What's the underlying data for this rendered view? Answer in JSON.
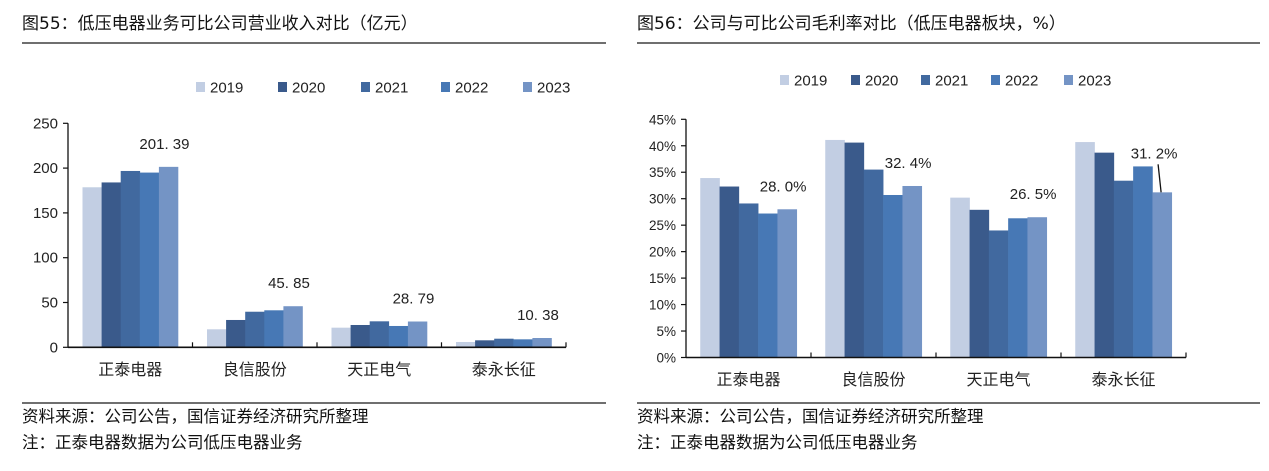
{
  "colors": {
    "2019": "#C2CEE3",
    "2020": "#3A5A8B",
    "2021": "#41699F",
    "2022": "#4778B5",
    "2023": "#7494C5",
    "rule": "#6f6f6f",
    "axis": "#111111"
  },
  "footer": {
    "source": "资料来源：公司公告，国信证券经济研究所整理",
    "note": "注：正泰电器数据为公司低压电器业务"
  },
  "chart_data": [
    {
      "type": "bar",
      "title": "图55：低压电器业务可比公司营业收入对比（亿元）",
      "xlabel": "",
      "ylabel": "",
      "categories": [
        "正泰电器",
        "良信股份",
        "天正电气",
        "泰永长征"
      ],
      "series": [
        {
          "name": "2019",
          "values": [
            178.6,
            20.1,
            21.9,
            5.9
          ]
        },
        {
          "name": "2020",
          "values": [
            184.0,
            30.5,
            24.9,
            7.8
          ]
        },
        {
          "name": "2021",
          "values": [
            196.8,
            39.7,
            29.0,
            9.6
          ]
        },
        {
          "name": "2022",
          "values": [
            195.0,
            41.3,
            23.8,
            8.9
          ]
        },
        {
          "name": "2023",
          "values": [
            201.39,
            45.85,
            28.79,
            10.38
          ]
        }
      ],
      "ylim": [
        0,
        250
      ],
      "yticks": [
        0,
        50,
        100,
        150,
        200,
        250
      ],
      "ytick_labels": [
        "0",
        "50",
        "100",
        "150",
        "200",
        "250"
      ],
      "grid": false,
      "legend_position": "top-center",
      "data_labels": [
        {
          "category": "正泰电器",
          "series": "2023",
          "text": "201. 39"
        },
        {
          "category": "良信股份",
          "series": "2023",
          "text": "45. 85"
        },
        {
          "category": "天正电气",
          "series": "2023",
          "text": "28. 79"
        },
        {
          "category": "泰永长征",
          "series": "2023",
          "text": "10. 38"
        }
      ]
    },
    {
      "type": "bar",
      "title": "图56：公司与可比公司毛利率对比（低压电器板块，%）",
      "xlabel": "",
      "ylabel": "",
      "categories": [
        "正泰电器",
        "良信股份",
        "天正电气",
        "泰永长征"
      ],
      "series": [
        {
          "name": "2019",
          "values": [
            33.9,
            41.1,
            30.2,
            40.7
          ]
        },
        {
          "name": "2020",
          "values": [
            32.3,
            40.6,
            27.9,
            38.7
          ]
        },
        {
          "name": "2021",
          "values": [
            29.1,
            35.5,
            24.0,
            33.4
          ]
        },
        {
          "name": "2022",
          "values": [
            27.2,
            30.7,
            26.3,
            36.1
          ]
        },
        {
          "name": "2023",
          "values": [
            28.0,
            32.4,
            26.5,
            31.2
          ]
        }
      ],
      "ylim": [
        0,
        45
      ],
      "yticks": [
        0,
        5,
        10,
        15,
        20,
        25,
        30,
        35,
        40,
        45
      ],
      "ytick_labels": [
        "0%",
        "5%",
        "10%",
        "15%",
        "20%",
        "25%",
        "30%",
        "35%",
        "40%",
        "45%"
      ],
      "grid": false,
      "legend_position": "top-center",
      "data_labels": [
        {
          "category": "正泰电器",
          "series": "2023",
          "text": "28. 0%"
        },
        {
          "category": "良信股份",
          "series": "2023",
          "text": "32. 4%"
        },
        {
          "category": "天正电气",
          "series": "2023",
          "text": "26. 5%"
        },
        {
          "category": "泰永长征",
          "series": "2023",
          "text": "31. 2%",
          "leader_line": true
        }
      ]
    }
  ]
}
